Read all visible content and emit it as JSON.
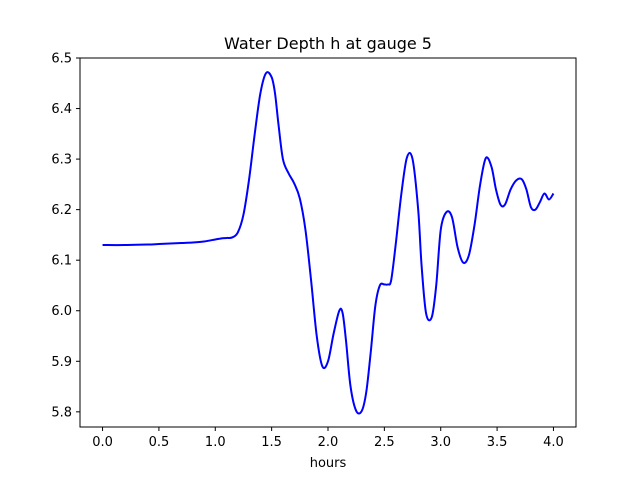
{
  "chart_data": {
    "type": "line",
    "title": "Water Depth h at gauge 5",
    "xlabel": "hours",
    "ylabel": "",
    "xlim": [
      -0.2,
      4.2
    ],
    "ylim": [
      5.77,
      6.5
    ],
    "xticks": [
      "0.0",
      "0.5",
      "1.0",
      "1.5",
      "2.0",
      "2.5",
      "3.0",
      "3.5",
      "4.0"
    ],
    "yticks": [
      "5.8",
      "5.9",
      "6.0",
      "6.1",
      "6.2",
      "6.3",
      "6.4",
      "6.5"
    ],
    "grid": false,
    "series": [
      {
        "color": "#0000ff",
        "x": [
          0.0,
          0.2,
          0.4,
          0.5,
          0.6,
          0.7,
          0.8,
          0.9,
          1.0,
          1.05,
          1.1,
          1.15,
          1.2,
          1.25,
          1.3,
          1.35,
          1.4,
          1.45,
          1.5,
          1.53,
          1.56,
          1.6,
          1.65,
          1.7,
          1.75,
          1.8,
          1.85,
          1.9,
          1.95,
          2.0,
          2.05,
          2.1,
          2.13,
          2.16,
          2.2,
          2.25,
          2.3,
          2.34,
          2.38,
          2.42,
          2.46,
          2.5,
          2.53,
          2.56,
          2.6,
          2.65,
          2.7,
          2.75,
          2.8,
          2.83,
          2.87,
          2.92,
          2.96,
          3.0,
          3.05,
          3.1,
          3.15,
          3.2,
          3.25,
          3.3,
          3.35,
          3.4,
          3.45,
          3.49,
          3.53,
          3.57,
          3.62,
          3.67,
          3.72,
          3.76,
          3.8,
          3.84,
          3.88,
          3.92,
          3.96,
          4.0
        ],
        "y": [
          6.13,
          6.13,
          6.131,
          6.132,
          6.133,
          6.134,
          6.135,
          6.137,
          6.141,
          6.143,
          6.144,
          6.145,
          6.155,
          6.19,
          6.26,
          6.35,
          6.43,
          6.47,
          6.462,
          6.43,
          6.37,
          6.3,
          6.272,
          6.252,
          6.222,
          6.16,
          6.06,
          5.95,
          5.89,
          5.9,
          5.955,
          6.0,
          5.995,
          5.94,
          5.85,
          5.802,
          5.802,
          5.84,
          5.92,
          6.01,
          6.05,
          6.052,
          6.052,
          6.06,
          6.13,
          6.23,
          6.303,
          6.3,
          6.2,
          6.09,
          5.995,
          5.987,
          6.05,
          6.16,
          6.195,
          6.185,
          6.125,
          6.095,
          6.11,
          6.17,
          6.25,
          6.302,
          6.285,
          6.24,
          6.21,
          6.21,
          6.24,
          6.258,
          6.26,
          6.24,
          6.205,
          6.2,
          6.215,
          6.232,
          6.22,
          6.232
        ]
      }
    ]
  }
}
